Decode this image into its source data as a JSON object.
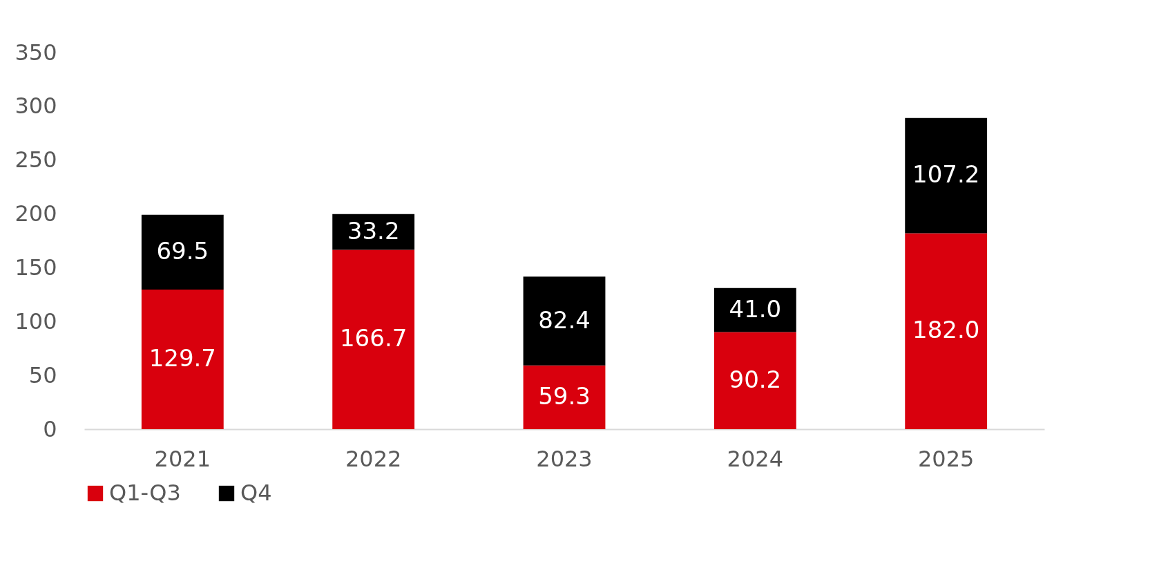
{
  "chart_data": {
    "type": "bar",
    "stacked": true,
    "categories": [
      "2021",
      "2022",
      "2023",
      "2024",
      "2025"
    ],
    "series": [
      {
        "name": "Q1-Q3",
        "color": "#d9000d",
        "values": [
          129.7,
          166.7,
          59.3,
          90.2,
          182.0
        ],
        "value_labels": [
          "129.7",
          "166.7",
          "59.3",
          "90.2",
          "182.0"
        ]
      },
      {
        "name": "Q4",
        "color": "#000000",
        "values": [
          69.5,
          33.2,
          82.4,
          41.0,
          107.2
        ],
        "value_labels": [
          "69.5",
          "33.2",
          "82.4",
          "41.0",
          "107.2"
        ]
      }
    ],
    "ylim": [
      0,
      350
    ],
    "yticks": [
      0,
      50,
      100,
      150,
      200,
      250,
      300,
      350
    ],
    "grid": false,
    "legend": "bottom"
  }
}
